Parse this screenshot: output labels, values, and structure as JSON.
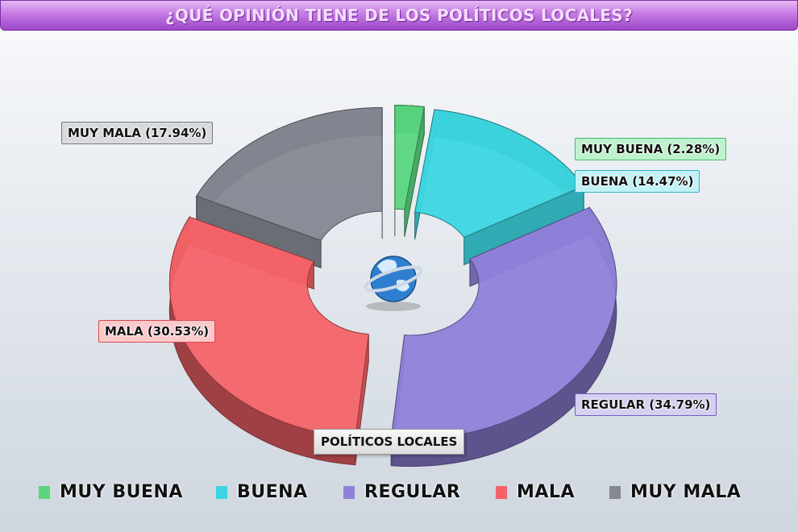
{
  "title": "¿QUÉ OPINIÓN TIENE DE LOS POLÍTICOS LOCALES?",
  "category_label": "POLÍTICOS LOCALES",
  "chart_data": {
    "type": "pie",
    "variant": "3d-exploded-donut",
    "title": "¿QUÉ OPINIÓN TIENE DE LOS POLÍTICOS LOCALES?",
    "category": "POLÍTICOS LOCALES",
    "legend_position": "bottom",
    "slices": [
      {
        "name": "MUY BUENA",
        "value": 2.28,
        "label": "MUY BUENA (2.28%)",
        "color": "#59d67e"
      },
      {
        "name": "BUENA",
        "value": 14.47,
        "label": "BUENA (14.47%)",
        "color": "#3dd6e0"
      },
      {
        "name": "REGULAR",
        "value": 34.79,
        "label": "REGULAR (34.79%)",
        "color": "#8f81da"
      },
      {
        "name": "MALA",
        "value": 30.53,
        "label": "MALA (30.53%)",
        "color": "#f46368"
      },
      {
        "name": "MUY MALA",
        "value": 17.94,
        "label": "MUY MALA (17.94%)",
        "color": "#858891"
      }
    ]
  }
}
